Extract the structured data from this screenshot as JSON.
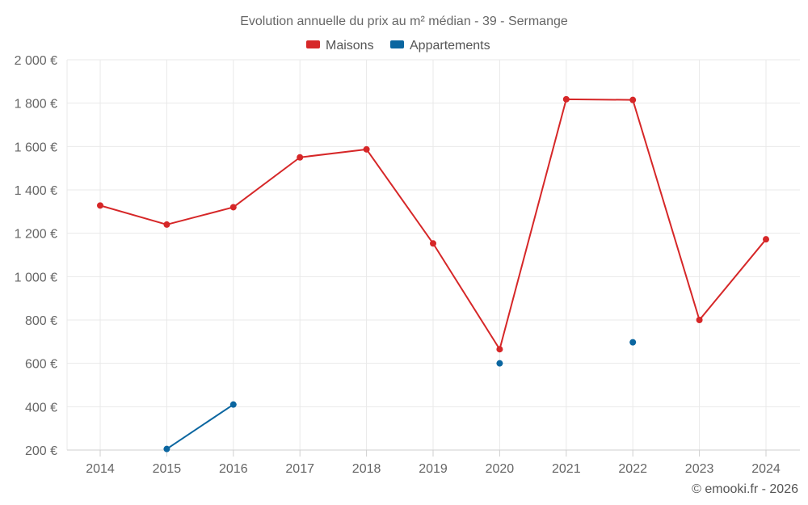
{
  "chart_data": {
    "type": "line",
    "title": "Evolution annuelle du prix au m² médian - 39 - Sermange",
    "categories": [
      "2014",
      "2015",
      "2016",
      "2017",
      "2018",
      "2019",
      "2020",
      "2021",
      "2022",
      "2023",
      "2024"
    ],
    "ylim": [
      200,
      2000
    ],
    "yticks": [
      200,
      400,
      600,
      800,
      1000,
      1200,
      1400,
      1600,
      1800,
      2000
    ],
    "ytick_labels": [
      "200 €",
      "400 €",
      "600 €",
      "800 €",
      "1 000 €",
      "1 200 €",
      "1 400 €",
      "1 600 €",
      "1 800 €",
      "2 000 €"
    ],
    "xlabel": "",
    "ylabel": "",
    "grid": true,
    "legend_position": "top-center",
    "series": [
      {
        "name": "Maisons",
        "color": "#d62728",
        "values": [
          1328,
          1240,
          1320,
          1550,
          1587,
          1153,
          665,
          1818,
          1815,
          800,
          1172
        ]
      },
      {
        "name": "Appartements",
        "color": "#0b66a0",
        "values": [
          null,
          205,
          410,
          null,
          null,
          null,
          600,
          null,
          697,
          null,
          null
        ]
      }
    ]
  },
  "credit": "© emooki.fr - 2026"
}
